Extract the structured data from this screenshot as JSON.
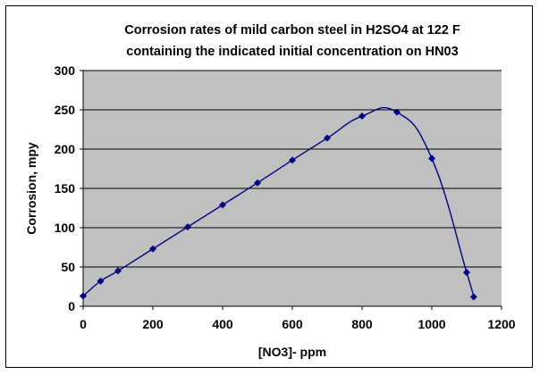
{
  "chart_data": {
    "type": "line",
    "title": "Corrosion rates of mild carbon steel in H2SO4 at 122 F",
    "subtitle": "containing the indicated initial concentration on HN03",
    "xlabel": "[NO3]- ppm",
    "ylabel": "Corrosion, mpy",
    "xlim": [
      0,
      1200
    ],
    "ylim": [
      0,
      300
    ],
    "xticks": [
      0,
      200,
      400,
      600,
      800,
      1000,
      1200
    ],
    "yticks": [
      0,
      50,
      100,
      150,
      200,
      250,
      300
    ],
    "grid": "horizontal",
    "legend": "none",
    "series": [
      {
        "x": [
          0,
          50,
          100,
          200,
          300,
          400,
          500,
          600,
          700,
          800,
          900,
          1000,
          1100,
          1120
        ],
        "y": [
          13,
          32,
          45,
          73,
          101,
          129,
          157,
          186,
          214,
          242,
          247,
          188,
          43,
          12
        ]
      }
    ],
    "colors": {
      "plot_area": "#c0c0c0",
      "line": "#000080",
      "marker": "#000080",
      "gridline": "#000000"
    }
  }
}
